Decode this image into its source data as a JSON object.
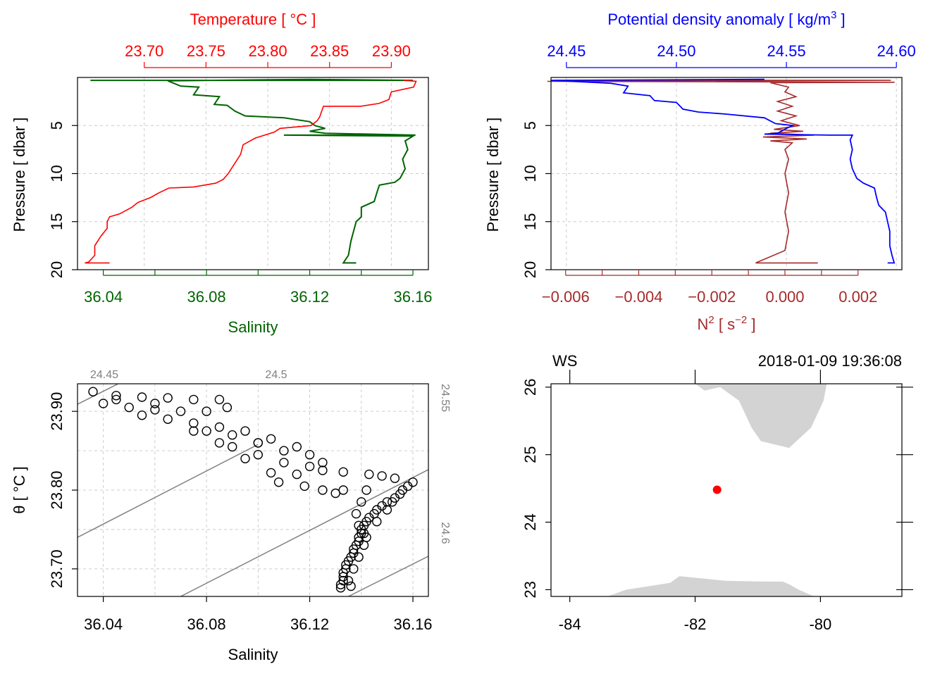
{
  "colors": {
    "temperature": "#ff0000",
    "salinity": "#006400",
    "density": "#0000ff",
    "n2": "#a52a2a",
    "isopycnal": "#808080",
    "land": "#d3d3d3",
    "station": "#ff0000",
    "grid": "#cccccc",
    "axis": "#000000"
  },
  "chart_data": [
    {
      "id": "profile-ts",
      "type": "line",
      "ylabel": "Pressure [ dbar ]",
      "ylim": [
        20,
        0
      ],
      "yticks": [
        "5",
        "10",
        "15",
        "20"
      ],
      "top_axis": {
        "label": "Temperature [ °C ]",
        "ticks": [
          "23.70",
          "23.75",
          "23.80",
          "23.85",
          "23.90"
        ]
      },
      "bottom_axis": {
        "label": "Salinity",
        "ticks": [
          "36.04",
          "36.08",
          "36.12",
          "36.16"
        ]
      },
      "series": [
        {
          "name": "Temperature",
          "xlim": [
            23.646,
            23.93
          ],
          "points": [
            [
              23.91,
              0.3
            ],
            [
              23.92,
              0.4
            ],
            [
              23.918,
              1.0
            ],
            [
              23.9,
              1.5
            ],
            [
              23.898,
              2.3
            ],
            [
              23.89,
              2.7
            ],
            [
              23.875,
              3.0
            ],
            [
              23.845,
              3.0
            ],
            [
              23.842,
              4.1
            ],
            [
              23.84,
              4.5
            ],
            [
              23.835,
              5.0
            ],
            [
              23.81,
              5.3
            ],
            [
              23.805,
              5.7
            ],
            [
              23.8,
              5.9
            ],
            [
              23.79,
              6.3
            ],
            [
              23.78,
              7.0
            ],
            [
              23.778,
              8.0
            ],
            [
              23.773,
              9.0
            ],
            [
              23.768,
              10.0
            ],
            [
              23.764,
              10.6
            ],
            [
              23.758,
              11.0
            ],
            [
              23.74,
              11.4
            ],
            [
              23.72,
              11.5
            ],
            [
              23.712,
              12.0
            ],
            [
              23.705,
              12.5
            ],
            [
              23.695,
              13.0
            ],
            [
              23.69,
              13.5
            ],
            [
              23.68,
              14.2
            ],
            [
              23.672,
              14.5
            ],
            [
              23.67,
              15.0
            ],
            [
              23.67,
              15.7
            ],
            [
              23.665,
              16.5
            ],
            [
              23.66,
              17.5
            ],
            [
              23.66,
              18.5
            ],
            [
              23.655,
              19.2
            ],
            [
              23.652,
              19.3
            ],
            [
              23.672,
              19.3
            ]
          ]
        },
        {
          "name": "Salinity",
          "xlim": [
            36.03,
            36.166
          ],
          "points": [
            [
              36.035,
              0.3
            ],
            [
              36.16,
              0.3
            ],
            [
              36.12,
              0.2
            ],
            [
              36.065,
              0.35
            ],
            [
              36.07,
              0.9
            ],
            [
              36.077,
              1.0
            ],
            [
              36.075,
              1.8
            ],
            [
              36.085,
              2.0
            ],
            [
              36.083,
              2.8
            ],
            [
              36.088,
              2.9
            ],
            [
              36.091,
              3.5
            ],
            [
              36.095,
              4.0
            ],
            [
              36.11,
              4.2
            ],
            [
              36.12,
              4.6
            ],
            [
              36.122,
              5.0
            ],
            [
              36.126,
              5.3
            ],
            [
              36.12,
              5.6
            ],
            [
              36.126,
              5.8
            ],
            [
              36.161,
              6.0
            ],
            [
              36.11,
              6.0
            ],
            [
              36.16,
              6.1
            ],
            [
              36.157,
              6.6
            ],
            [
              36.158,
              7.5
            ],
            [
              36.156,
              8.5
            ],
            [
              36.157,
              9.5
            ],
            [
              36.155,
              10.5
            ],
            [
              36.153,
              10.9
            ],
            [
              36.147,
              11.2
            ],
            [
              36.146,
              12.0
            ],
            [
              36.145,
              12.9
            ],
            [
              36.14,
              13.5
            ],
            [
              36.14,
              14.5
            ],
            [
              36.138,
              15.0
            ],
            [
              36.137,
              16.0
            ],
            [
              36.136,
              17.0
            ],
            [
              36.135,
              18.5
            ],
            [
              36.133,
              19.3
            ],
            [
              36.138,
              19.3
            ]
          ]
        }
      ]
    },
    {
      "id": "profile-density",
      "type": "line",
      "ylabel": "Pressure [ dbar ]",
      "ylim": [
        20,
        0
      ],
      "yticks": [
        "5",
        "10",
        "15",
        "20"
      ],
      "top_axis": {
        "label": "Potential density anomaly [ kg/m",
        "label_sup": "3",
        "label_end": " ]",
        "ticks": [
          "24.45",
          "24.50",
          "24.55",
          "24.60"
        ]
      },
      "bottom_axis": {
        "label": "N",
        "label_sup": "2",
        "label_mid": " [ s",
        "label_sup2": "−2",
        "label_end": " ]",
        "ticks": [
          "−0.006",
          "−0.004",
          "−0.002",
          "0.000",
          "0.002"
        ]
      },
      "series": [
        {
          "name": "Potential density anomaly",
          "xlim": [
            24.443,
            24.6025
          ],
          "points": [
            [
              24.54,
              0.2
            ],
            [
              24.443,
              0.3
            ],
            [
              24.47,
              0.6
            ],
            [
              24.478,
              0.9
            ],
            [
              24.476,
              1.6
            ],
            [
              24.488,
              1.9
            ],
            [
              24.49,
              2.4
            ],
            [
              24.5,
              2.6
            ],
            [
              24.503,
              3.3
            ],
            [
              24.51,
              3.6
            ],
            [
              24.522,
              3.8
            ],
            [
              24.54,
              4.2
            ],
            [
              24.545,
              4.8
            ],
            [
              24.553,
              5.0
            ],
            [
              24.55,
              5.3
            ],
            [
              24.546,
              5.8
            ],
            [
              24.54,
              5.9
            ],
            [
              24.57,
              6.0
            ],
            [
              24.58,
              6.0
            ],
            [
              24.579,
              6.5
            ],
            [
              24.58,
              7.5
            ],
            [
              24.579,
              8.5
            ],
            [
              24.58,
              9.5
            ],
            [
              24.582,
              10.5
            ],
            [
              24.585,
              11.0
            ],
            [
              24.59,
              11.5
            ],
            [
              24.591,
              12.5
            ],
            [
              24.592,
              13.3
            ],
            [
              24.595,
              14.0
            ],
            [
              24.596,
              15.0
            ],
            [
              24.597,
              16.0
            ],
            [
              24.597,
              17.5
            ],
            [
              24.598,
              18.5
            ],
            [
              24.599,
              19.3
            ],
            [
              24.596,
              19.3
            ]
          ]
        },
        {
          "name": "N2",
          "xlim": [
            -0.0064,
            0.0032
          ],
          "points": [
            [
              -0.0063,
              0.3
            ],
            [
              0.0029,
              0.3
            ],
            [
              -0.0065,
              0.4
            ],
            [
              0.003,
              0.5
            ],
            [
              -0.0004,
              0.55
            ],
            [
              0.0001,
              1.0
            ],
            [
              0.0,
              1.5
            ],
            [
              0.0003,
              2.0
            ],
            [
              -0.0002,
              2.5
            ],
            [
              0.0002,
              3.0
            ],
            [
              -0.0002,
              3.5
            ],
            [
              0.0003,
              4.0
            ],
            [
              -0.0001,
              4.5
            ],
            [
              0.0004,
              5.0
            ],
            [
              -0.0003,
              5.4
            ],
            [
              0.0005,
              5.6
            ],
            [
              -0.0004,
              5.8
            ],
            [
              0.0008,
              6.0
            ],
            [
              -0.0006,
              6.2
            ],
            [
              0.0006,
              6.4
            ],
            [
              -0.0004,
              6.6
            ],
            [
              0.0002,
              6.8
            ],
            [
              0.0,
              7.5
            ],
            [
              0.0001,
              8.5
            ],
            [
              0.0,
              10.0
            ],
            [
              0.0001,
              12.0
            ],
            [
              0.0,
              14.0
            ],
            [
              0.0001,
              16.0
            ],
            [
              0.0,
              18.0
            ],
            [
              -0.0008,
              19.3
            ],
            [
              0.0009,
              19.3
            ]
          ]
        }
      ]
    },
    {
      "id": "ts-diagram",
      "type": "scatter",
      "xlabel": "Salinity",
      "ylabel": "θ [ °C ]",
      "xlim": [
        36.03,
        36.166
      ],
      "ylim": [
        23.665,
        23.935
      ],
      "xticks": [
        "36.04",
        "36.08",
        "36.12",
        "36.16"
      ],
      "yticks": [
        "23.70",
        "23.80",
        "23.90"
      ],
      "isopycnals": [
        {
          "label": "24.45",
          "s": [
            36.03,
            36.05
          ],
          "t": [
            23.909,
            23.942
          ]
        },
        {
          "label": "24.5",
          "s": [
            36.03,
            36.1
          ],
          "t": [
            23.74,
            23.858
          ]
        },
        {
          "label": "24.55",
          "s": [
            36.07,
            36.166
          ],
          "t": [
            23.665,
            23.826
          ]
        },
        {
          "label": "24.6",
          "s": [
            36.135,
            36.166
          ],
          "t": [
            23.665,
            23.716
          ]
        }
      ],
      "points": [
        [
          36.036,
          23.925
        ],
        [
          36.045,
          23.92
        ],
        [
          36.055,
          23.918
        ],
        [
          36.065,
          23.917
        ],
        [
          36.075,
          23.915
        ],
        [
          36.085,
          23.915
        ],
        [
          36.04,
          23.91
        ],
        [
          36.05,
          23.905
        ],
        [
          36.06,
          23.902
        ],
        [
          36.07,
          23.9
        ],
        [
          36.08,
          23.9
        ],
        [
          36.088,
          23.905
        ],
        [
          36.045,
          23.915
        ],
        [
          36.06,
          23.91
        ],
        [
          36.055,
          23.895
        ],
        [
          36.065,
          23.89
        ],
        [
          36.075,
          23.885
        ],
        [
          36.085,
          23.88
        ],
        [
          36.095,
          23.875
        ],
        [
          36.105,
          23.865
        ],
        [
          36.115,
          23.855
        ],
        [
          36.12,
          23.845
        ],
        [
          36.125,
          23.835
        ],
        [
          36.09,
          23.87
        ],
        [
          36.1,
          23.86
        ],
        [
          36.11,
          23.85
        ],
        [
          36.08,
          23.875
        ],
        [
          36.09,
          23.855
        ],
        [
          36.1,
          23.845
        ],
        [
          36.11,
          23.835
        ],
        [
          36.12,
          23.83
        ],
        [
          36.105,
          23.822
        ],
        [
          36.115,
          23.82
        ],
        [
          36.125,
          23.825
        ],
        [
          36.108,
          23.81
        ],
        [
          36.118,
          23.805
        ],
        [
          36.125,
          23.8
        ],
        [
          36.13,
          23.796
        ],
        [
          36.133,
          23.8
        ],
        [
          36.1,
          23.86
        ],
        [
          36.095,
          23.84
        ],
        [
          36.085,
          23.86
        ],
        [
          36.075,
          23.875
        ],
        [
          36.143,
          23.82
        ],
        [
          36.148,
          23.818
        ],
        [
          36.153,
          23.815
        ],
        [
          36.133,
          23.823
        ],
        [
          36.16,
          23.81
        ],
        [
          36.158,
          23.805
        ],
        [
          36.156,
          23.8
        ],
        [
          36.155,
          23.795
        ],
        [
          36.153,
          23.79
        ],
        [
          36.15,
          23.785
        ],
        [
          36.148,
          23.78
        ],
        [
          36.146,
          23.775
        ],
        [
          36.145,
          23.77
        ],
        [
          36.143,
          23.765
        ],
        [
          36.142,
          23.76
        ],
        [
          36.141,
          23.755
        ],
        [
          36.14,
          23.75
        ],
        [
          36.14,
          23.745
        ],
        [
          36.139,
          23.74
        ],
        [
          36.139,
          23.735
        ],
        [
          36.138,
          23.73
        ],
        [
          36.137,
          23.725
        ],
        [
          36.137,
          23.72
        ],
        [
          36.136,
          23.715
        ],
        [
          36.135,
          23.71
        ],
        [
          36.134,
          23.705
        ],
        [
          36.134,
          23.7
        ],
        [
          36.133,
          23.695
        ],
        [
          36.133,
          23.69
        ],
        [
          36.133,
          23.685
        ],
        [
          36.132,
          23.68
        ],
        [
          36.132,
          23.676
        ],
        [
          36.136,
          23.678
        ],
        [
          36.135,
          23.685
        ],
        [
          36.137,
          23.7
        ],
        [
          36.139,
          23.715
        ],
        [
          36.141,
          23.73
        ],
        [
          36.141,
          23.745
        ],
        [
          36.146,
          23.76
        ],
        [
          36.15,
          23.775
        ],
        [
          36.152,
          23.785
        ],
        [
          36.142,
          23.8
        ],
        [
          36.14,
          23.785
        ],
        [
          36.138,
          23.77
        ],
        [
          36.139,
          23.755
        ],
        [
          36.142,
          23.74
        ]
      ]
    },
    {
      "id": "station-map",
      "type": "map",
      "label_left": "WS",
      "label_right": "2018-01-09 19:36:08",
      "xlim": [
        -84.3,
        -78.7
      ],
      "ylim": [
        22.9,
        26.05
      ],
      "xticks": [
        "-84",
        "-82",
        "-80"
      ],
      "yticks": [
        "23",
        "24",
        "25",
        "26"
      ],
      "land": [
        [
          [
            -82.0,
            26.05
          ],
          [
            -79.9,
            26.05
          ],
          [
            -79.95,
            25.8
          ],
          [
            -80.15,
            25.4
          ],
          [
            -80.5,
            25.1
          ],
          [
            -80.95,
            25.2
          ],
          [
            -81.1,
            25.4
          ],
          [
            -81.3,
            25.8
          ],
          [
            -81.6,
            26.0
          ],
          [
            -81.85,
            25.95
          ],
          [
            -82.0,
            26.05
          ]
        ],
        [
          [
            -83.4,
            22.9
          ],
          [
            -83.1,
            23.0
          ],
          [
            -82.4,
            23.1
          ],
          [
            -82.25,
            23.2
          ],
          [
            -81.5,
            23.13
          ],
          [
            -80.9,
            23.12
          ],
          [
            -80.6,
            23.12
          ],
          [
            -80.5,
            23.08
          ],
          [
            -80.35,
            23.0
          ],
          [
            -80.1,
            22.9
          ]
        ]
      ],
      "station": {
        "lon": -81.65,
        "lat": 24.48
      }
    }
  ]
}
